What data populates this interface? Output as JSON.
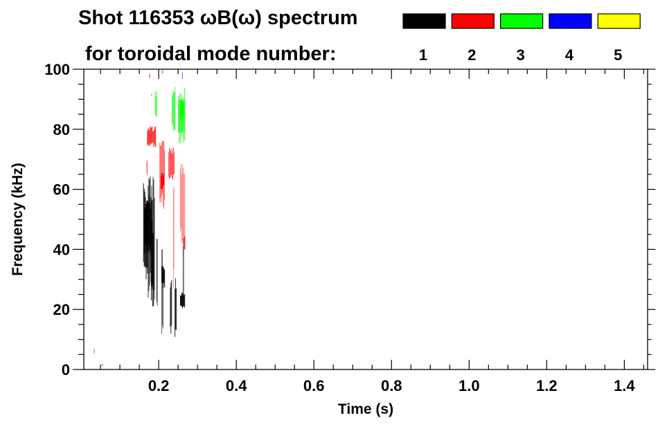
{
  "chart_data": {
    "type": "heatmap",
    "title_line1": "Shot 116353 ωB(ω) spectrum",
    "title_line2": "for toroidal mode number:",
    "xlabel": "Time (s)",
    "ylabel": "Frequency (kHz)",
    "xlim": [
      0.007,
      1.46
    ],
    "ylim": [
      0,
      100
    ],
    "x_ticks": [
      "0.2",
      "0.4",
      "0.6",
      "0.8",
      "1.0",
      "1.2",
      "1.4"
    ],
    "x_tick_values": [
      0.2,
      0.4,
      0.6,
      0.8,
      1.0,
      1.2,
      1.4
    ],
    "y_ticks": [
      "0",
      "20",
      "40",
      "60",
      "80",
      "100"
    ],
    "y_tick_values": [
      0,
      20,
      40,
      60,
      80,
      100
    ],
    "legend": [
      {
        "label": "1",
        "color": "#000000"
      },
      {
        "label": "2",
        "color": "#ff0000"
      },
      {
        "label": "3",
        "color": "#00ff00"
      },
      {
        "label": "4",
        "color": "#0000ff"
      },
      {
        "label": "5",
        "color": "#ffff00"
      }
    ],
    "legend_placement": "top-right",
    "regions_note_columns": [
      "t_start_s",
      "t_end_s",
      "f_low_khz",
      "f_high_khz",
      "mode",
      "opacity"
    ],
    "regions": [
      [
        0.16,
        0.172,
        28,
        62,
        1,
        0.9
      ],
      [
        0.163,
        0.182,
        38,
        58,
        1,
        1
      ],
      [
        0.172,
        0.19,
        22,
        67,
        1,
        0.75
      ],
      [
        0.18,
        0.187,
        20,
        50,
        1,
        0.9
      ],
      [
        0.194,
        0.197,
        14,
        52,
        1,
        0.7
      ],
      [
        0.207,
        0.212,
        10,
        40,
        1,
        0.6
      ],
      [
        0.207,
        0.216,
        27,
        35,
        1,
        0.95
      ],
      [
        0.229,
        0.234,
        11,
        30,
        1,
        0.85
      ],
      [
        0.241,
        0.246,
        8,
        31,
        1,
        0.85
      ],
      [
        0.255,
        0.268,
        20,
        26,
        1,
        0.95
      ],
      [
        0.262,
        0.265,
        15,
        46,
        1,
        0.6
      ],
      [
        0.033,
        0.035,
        5,
        7,
        1,
        0.5
      ],
      [
        0.054,
        0.056,
        1,
        2,
        1,
        0.6
      ],
      [
        0.17,
        0.193,
        74,
        81,
        2,
        0.85
      ],
      [
        0.168,
        0.172,
        64,
        70,
        2,
        0.5
      ],
      [
        0.202,
        0.216,
        53,
        77,
        2,
        0.6
      ],
      [
        0.205,
        0.214,
        60,
        66,
        2,
        1
      ],
      [
        0.225,
        0.241,
        62,
        75,
        2,
        0.7
      ],
      [
        0.237,
        0.24,
        25,
        62,
        2,
        0.45
      ],
      [
        0.255,
        0.268,
        40,
        72,
        2,
        0.45
      ],
      [
        0.265,
        0.268,
        40,
        45,
        2,
        0.9
      ],
      [
        0.176,
        0.178,
        97,
        99,
        2,
        0.9
      ],
      [
        0.181,
        0.183,
        91,
        92,
        2,
        0.9
      ],
      [
        0.19,
        0.196,
        83,
        93,
        3,
        0.7
      ],
      [
        0.234,
        0.243,
        79,
        95,
        3,
        0.8
      ],
      [
        0.25,
        0.268,
        75,
        94,
        3,
        0.85
      ],
      [
        0.254,
        0.266,
        83,
        90,
        3,
        1
      ],
      [
        0.209,
        0.211,
        98,
        100,
        4,
        0.6
      ],
      [
        0.26,
        0.262,
        96,
        100,
        4,
        0.6
      ]
    ]
  }
}
